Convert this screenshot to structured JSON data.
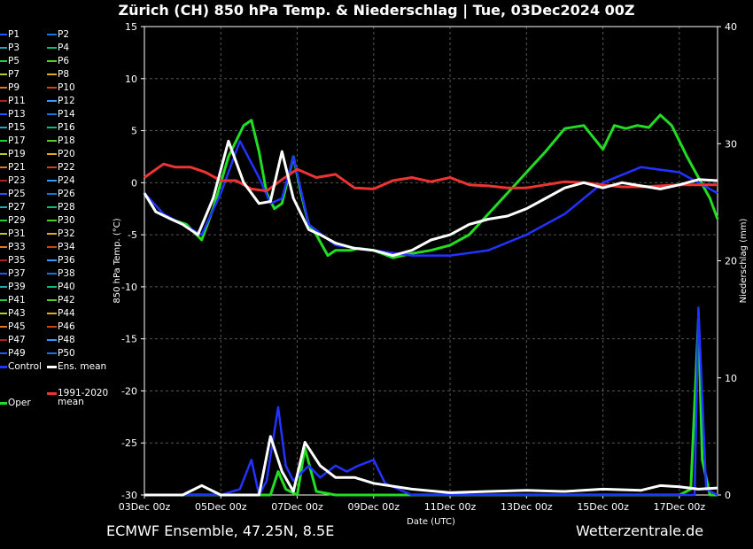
{
  "title": "Zürich  (CH)  850 hPa Temp. & Niederschlag | Tue, 03Dec2024 00Z",
  "footer": {
    "left": "ECMWF Ensemble, 47.25N, 8.5E",
    "right": "Wetterzentrale.de"
  },
  "colors": {
    "background": "#000000",
    "grid": "#555555",
    "oper": "#22dd22",
    "control": "#2233ff",
    "ens_mean": "#ffffff",
    "climate": "#ee3333"
  },
  "chart_data": {
    "type": "line",
    "title": "Zürich  (CH)  850 hPa Temp. & Niederschlag | Tue, 03Dec2024 00Z",
    "xlabel": "Date (UTC)",
    "ylabel_left": "850 hPa Temp. (°C)",
    "ylabel_right": "Niederschlag (mm)",
    "xlim_days": [
      0,
      15
    ],
    "x_ticks": [
      "03Dec 00z",
      "05Dec 00z",
      "07Dec 00z",
      "09Dec 00z",
      "11Dec 00z",
      "13Dec 00z",
      "15Dec 00z",
      "17Dec 00z"
    ],
    "ylim_left": [
      -30,
      15
    ],
    "yticks_left": [
      15,
      10,
      5,
      0,
      -5,
      -10,
      -15,
      -20,
      -25,
      -30
    ],
    "ylim_right": [
      0,
      40
    ],
    "yticks_right": [
      40,
      30,
      20,
      10,
      0
    ],
    "grid": true,
    "legend_position": "left",
    "legend_members": [
      "P1",
      "P2",
      "P3",
      "P4",
      "P5",
      "P6",
      "P7",
      "P8",
      "P9",
      "P10",
      "P11",
      "P12",
      "P13",
      "P14",
      "P15",
      "P16",
      "P17",
      "P18",
      "P19",
      "P20",
      "P21",
      "P22",
      "P23",
      "P24",
      "P25",
      "P26",
      "P27",
      "P28",
      "P29",
      "P30",
      "P31",
      "P32",
      "P33",
      "P34",
      "P35",
      "P36",
      "P37",
      "P38",
      "P39",
      "P40",
      "P41",
      "P42",
      "P43",
      "P44",
      "P45",
      "P46",
      "P47",
      "P48",
      "P49",
      "P50"
    ],
    "legend_specials": {
      "control": "Control",
      "ens_mean": "Ens. mean",
      "climate": "1991-2020\nmean",
      "oper": "Oper"
    },
    "series": [
      {
        "name": "Oper",
        "kind": "oper",
        "temp_x": [
          0,
          0.3,
          0.7,
          1.1,
          1.5,
          1.8,
          2.2,
          2.6,
          2.8,
          3.0,
          3.2,
          3.4,
          3.6,
          3.9,
          4.1,
          4.3,
          4.5,
          4.8,
          5.0,
          5.2,
          5.4,
          5.6,
          6.0,
          6.5,
          7.0,
          7.5,
          8.0,
          8.5,
          9.0,
          9.5,
          10.0,
          10.5,
          11.0,
          11.5,
          12.0,
          12.3,
          12.6,
          12.9,
          13.2,
          13.5,
          13.8,
          14.0,
          14.2,
          14.5,
          14.8,
          15.0
        ],
        "temp_y": [
          -1,
          -2.8,
          -3.5,
          -4,
          -5.5,
          -2.5,
          2.5,
          5.5,
          6,
          3,
          -1,
          -2.5,
          -2,
          2.5,
          -1,
          -4,
          -5,
          -7,
          -6.5,
          -6.5,
          -6.5,
          -6.3,
          -6.5,
          -7.2,
          -6.8,
          -6.5,
          -6,
          -5,
          -3,
          -1,
          1,
          3,
          5.2,
          5.5,
          3.2,
          5.5,
          5.2,
          5.5,
          5.3,
          6.5,
          5.5,
          4,
          2.5,
          0.5,
          -1.5,
          -3.5
        ],
        "precip_x": [
          0,
          1.5,
          2.5,
          3.3,
          3.5,
          3.7,
          4.0,
          4.2,
          4.5,
          5.0,
          6.0,
          7.0,
          8.0,
          9.0,
          10.0,
          11.0,
          12.0,
          13.0,
          14.0,
          14.3,
          14.5,
          14.6,
          14.8,
          15.0
        ],
        "precip_y": [
          0,
          0,
          0,
          0,
          2,
          0.5,
          0,
          4,
          0.3,
          0,
          0,
          0,
          0,
          0,
          0,
          0,
          0,
          0,
          0,
          0.5,
          15,
          3,
          0,
          0
        ]
      },
      {
        "name": "Control",
        "kind": "control",
        "temp_x": [
          0,
          0.5,
          1.0,
          1.5,
          2.0,
          2.5,
          3.0,
          3.3,
          3.6,
          3.9,
          4.3,
          5.0,
          6.0,
          7.0,
          8.0,
          9.0,
          10.0,
          11.0,
          12.0,
          13.0,
          14.0,
          15.0
        ],
        "temp_y": [
          -1,
          -3,
          -4,
          -5,
          -1,
          4,
          0.5,
          -2,
          -1.5,
          2.5,
          -4,
          -6,
          -6.5,
          -7,
          -7,
          -6.5,
          -5,
          -3,
          0,
          1.5,
          1,
          -1
        ],
        "precip_x": [
          0,
          1.5,
          2.0,
          2.5,
          2.8,
          3.0,
          3.2,
          3.5,
          3.7,
          3.9,
          4.3,
          4.6,
          5.0,
          5.3,
          5.6,
          6.0,
          6.3,
          7.0,
          8.0,
          9.0,
          10.0,
          11.0,
          12.0,
          13.0,
          14.0,
          14.4,
          14.5,
          14.7,
          15.0
        ],
        "precip_y": [
          0,
          0,
          0,
          0.5,
          3,
          0,
          1.2,
          7.5,
          2.5,
          1.2,
          2.5,
          1.5,
          2.5,
          2,
          2.5,
          3,
          1,
          0,
          0,
          0,
          0,
          0,
          0,
          0,
          0,
          0,
          16,
          0.5,
          0
        ]
      },
      {
        "name": "Ens. mean",
        "kind": "ens_mean",
        "temp_x": [
          0,
          0.3,
          0.7,
          1.0,
          1.4,
          1.8,
          2.2,
          2.6,
          3.0,
          3.3,
          3.6,
          3.9,
          4.3,
          4.6,
          5.0,
          5.5,
          6.0,
          6.5,
          7.0,
          7.5,
          8.0,
          8.5,
          9.0,
          9.5,
          10.0,
          10.5,
          11.0,
          11.5,
          12.0,
          12.5,
          13.0,
          13.5,
          14.0,
          14.5,
          15.0
        ],
        "temp_y": [
          -1,
          -2.8,
          -3.5,
          -4,
          -5,
          -1.5,
          4,
          0,
          -2,
          -1.8,
          3,
          -1.5,
          -4.5,
          -5,
          -5.8,
          -6.3,
          -6.5,
          -7,
          -6.5,
          -5.5,
          -5,
          -4,
          -3.5,
          -3.2,
          -2.5,
          -1.5,
          -0.5,
          0,
          -0.5,
          0,
          -0.3,
          -0.6,
          -0.2,
          0.3,
          0.2
        ],
        "precip_x": [
          0,
          1.0,
          1.5,
          2.0,
          2.5,
          3.0,
          3.3,
          3.6,
          3.9,
          4.2,
          4.6,
          5.0,
          5.5,
          6.0,
          7.0,
          8.0,
          9.0,
          10.0,
          11.0,
          12.0,
          13.0,
          13.5,
          14.0,
          14.5,
          15.0
        ],
        "precip_y": [
          0,
          0,
          0.8,
          0,
          0,
          0,
          5,
          2,
          0.3,
          4.5,
          2.5,
          1.5,
          1.5,
          1,
          0.5,
          0.2,
          0.3,
          0.4,
          0.3,
          0.5,
          0.4,
          0.8,
          0.7,
          0.5,
          0.6
        ]
      },
      {
        "name": "1991-2020 mean",
        "kind": "climate",
        "temp_x": [
          0,
          0.5,
          0.8,
          1.2,
          1.6,
          2.0,
          2.4,
          2.8,
          3.2,
          3.6,
          4.0,
          4.5,
          5.0,
          5.5,
          6.0,
          6.5,
          7.0,
          7.5,
          8.0,
          8.5,
          9.0,
          9.5,
          10.0,
          10.5,
          11.0,
          11.5,
          12.0,
          12.5,
          13.0,
          13.5,
          14.0,
          14.5,
          15.0
        ],
        "temp_y": [
          0.5,
          1.8,
          1.5,
          1.5,
          1,
          0.2,
          0.2,
          -0.6,
          -0.8,
          0.3,
          1.3,
          0.5,
          0.8,
          -0.5,
          -0.6,
          0.2,
          0.5,
          0.1,
          0.5,
          -0.2,
          -0.3,
          -0.5,
          -0.5,
          -0.2,
          0.1,
          0,
          -0.2,
          -0.4,
          -0.4,
          -0.3,
          -0.2,
          -0.2,
          -0.2
        ]
      }
    ]
  }
}
